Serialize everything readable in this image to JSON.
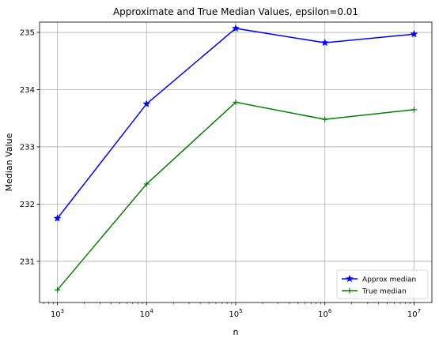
{
  "chart_data": {
    "type": "line",
    "title": "Approximate and True Median Values, epsilon=0.01",
    "xlabel": "n",
    "ylabel": "Median Value",
    "x_scale": "log",
    "x": [
      1000,
      10000,
      100000,
      1000000,
      10000000
    ],
    "x_tick_labels": [
      {
        "base": "10",
        "exp": "3"
      },
      {
        "base": "10",
        "exp": "4"
      },
      {
        "base": "10",
        "exp": "5"
      },
      {
        "base": "10",
        "exp": "6"
      },
      {
        "base": "10",
        "exp": "7"
      }
    ],
    "y_ticks": [
      "231",
      "232",
      "233",
      "234",
      "235"
    ],
    "ylim": [
      230.28,
      235.18
    ],
    "grid": true,
    "legend_position": "lower-right",
    "series": [
      {
        "name": "Approx median",
        "values": [
          231.75,
          233.75,
          235.07,
          234.82,
          234.97
        ],
        "color": "#0000ff",
        "marker": "star"
      },
      {
        "name": "True median",
        "values": [
          230.5,
          232.35,
          233.78,
          233.48,
          233.65
        ],
        "color": "#008000",
        "marker": "plus"
      }
    ]
  }
}
